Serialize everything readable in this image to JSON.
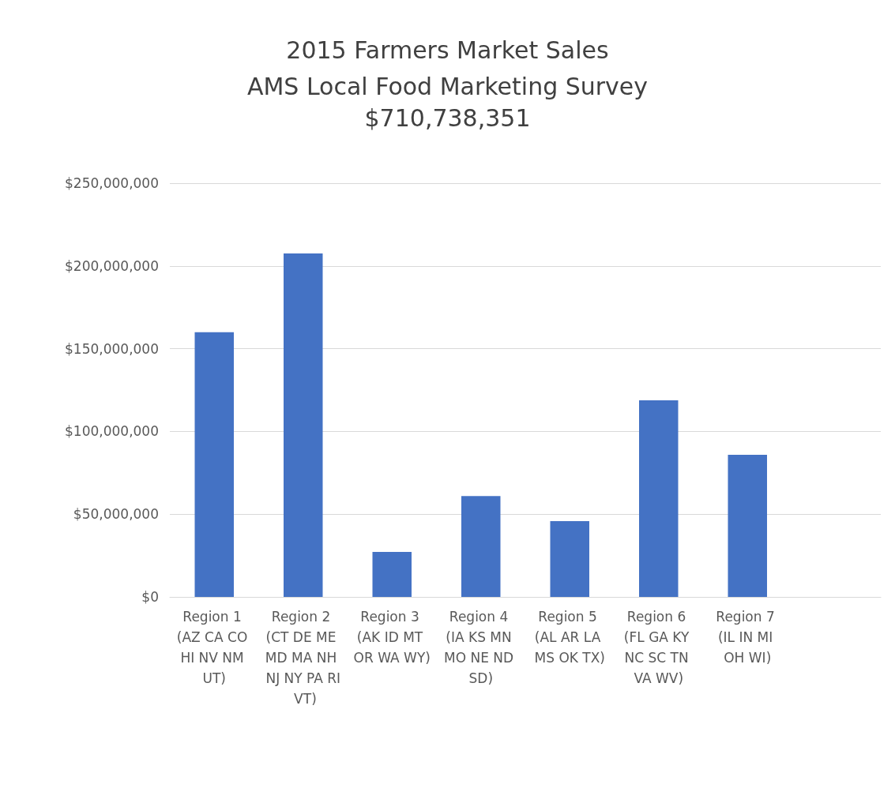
{
  "chart_data": {
    "type": "bar",
    "title": "2015 Farmers Market Sales",
    "subtitle": "AMS Local Food Marketing Survey\n$710,738,351",
    "categories": [
      "Region 1 (AZ CA CO HI NV NM UT)",
      "Region 2 (CT DE ME MD MA NH NJ NY PA RI VT)",
      "Region 3 (AK ID MT OR WA WY)",
      "Region 4 (IA KS MN MO NE ND SD)",
      "Region 5 (AL AR LA MS OK TX)",
      "Region 6 (FL GA KY NC SC TN VA WV)",
      "Region 7 (IL IN MI OH WI)",
      null
    ],
    "values": [
      160000000,
      207500000,
      27200000,
      61000000,
      45800000,
      118800000,
      85900000,
      null
    ],
    "color": "#4472c4",
    "ylim": [
      0,
      250000000
    ],
    "yticks": [
      {
        "value": 0,
        "label": "$0"
      },
      {
        "value": 50000000,
        "label": "$50,000,000"
      },
      {
        "value": 100000000,
        "label": "$100,000,000"
      },
      {
        "value": 150000000,
        "label": "$150,000,000"
      },
      {
        "value": 200000000,
        "label": "$200,000,000"
      },
      {
        "value": 250000000,
        "label": "$250,000,000"
      }
    ],
    "grid": "y"
  }
}
